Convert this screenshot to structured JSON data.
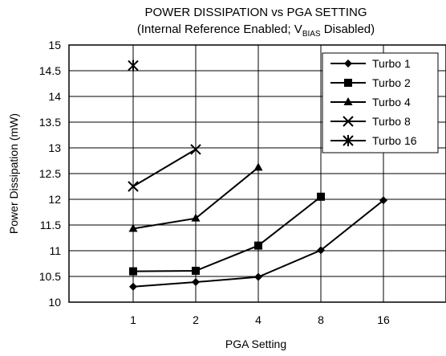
{
  "chart_data": {
    "type": "line",
    "title": "POWER DISSIPATION vs PGA SETTING",
    "subtitle_parts": {
      "before": "(Internal Reference Enabled; V",
      "sub": "BIAS",
      "after": " Disabled)"
    },
    "xlabel": "PGA Setting",
    "ylabel": "Power Dissipation (mW)",
    "categories": [
      "1",
      "2",
      "4",
      "8",
      "16"
    ],
    "ylim": [
      10,
      15
    ],
    "yticks": [
      "10",
      "10.5",
      "11",
      "11.5",
      "12",
      "12.5",
      "13",
      "13.5",
      "14",
      "14.5",
      "15"
    ],
    "grid": true,
    "legend_position": "top-right",
    "series": [
      {
        "name": "Turbo 1",
        "marker": "diamond",
        "values": [
          10.3,
          10.39,
          10.49,
          11.01,
          11.98
        ]
      },
      {
        "name": "Turbo 2",
        "marker": "square",
        "values": [
          10.6,
          10.61,
          11.1,
          12.05,
          null
        ]
      },
      {
        "name": "Turbo 4",
        "marker": "triangle",
        "values": [
          11.43,
          11.63,
          12.62,
          null,
          null
        ]
      },
      {
        "name": "Turbo 8",
        "marker": "x",
        "values": [
          12.25,
          12.97,
          null,
          null,
          null
        ]
      },
      {
        "name": "Turbo 16",
        "marker": "asterisk",
        "values": [
          14.6,
          null,
          null,
          null,
          null
        ]
      }
    ]
  }
}
